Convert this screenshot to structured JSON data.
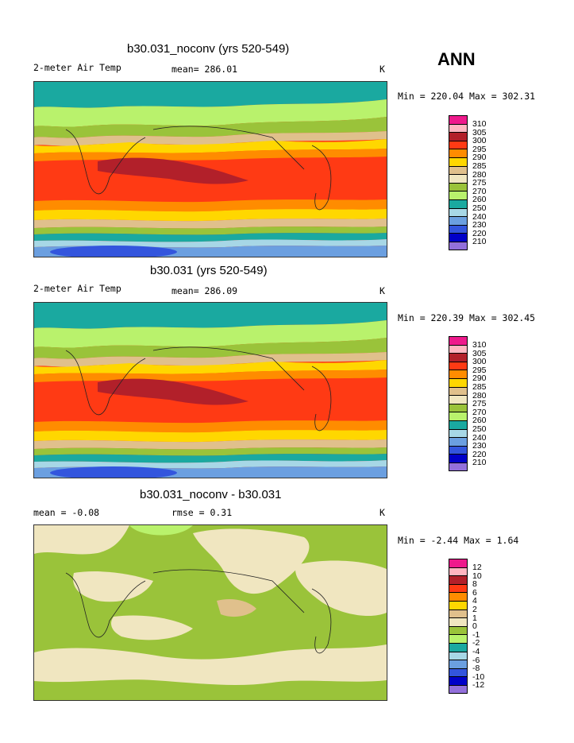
{
  "season": "ANN",
  "panels": [
    {
      "title": "b30.031_noconv (yrs 520-549)",
      "left_label": "2-meter Air Temp",
      "mid_label": "mean= 286.01",
      "unit": "K",
      "minmax": "Min = 220.04 Max = 302.31"
    },
    {
      "title": "b30.031 (yrs 520-549)",
      "left_label": "2-meter Air Temp",
      "mid_label": "mean= 286.09",
      "unit": "K",
      "minmax": "Min = 220.39 Max = 302.45"
    },
    {
      "title": "b30.031_noconv - b30.031",
      "left_label": "mean =   -0.08",
      "mid_label": "rmse =    0.31",
      "unit": "K",
      "minmax": "Min =  -2.44 Max =   1.64"
    }
  ],
  "colorbar_colors": [
    "#ee1a8c",
    "#ffb6c1",
    "#b2202a",
    "#ff3a14",
    "#ff8c00",
    "#ffd700",
    "#e0c08c",
    "#f0e6c0",
    "#9ac33a",
    "#b9f26c",
    "#1aa9a0",
    "#a7d7e6",
    "#6b9fe0",
    "#3355dd",
    "#0000c8",
    "#9370db"
  ],
  "colorbar_labels_abs": [
    "310",
    "305",
    "300",
    "295",
    "290",
    "285",
    "280",
    "275",
    "270",
    "260",
    "250",
    "240",
    "230",
    "220",
    "210"
  ],
  "colorbar_labels_diff": [
    "12",
    "10",
    "8",
    "6",
    "4",
    "2",
    "1",
    "0",
    "-1",
    "-2",
    "-4",
    "-6",
    "-8",
    "-10",
    "-12"
  ]
}
